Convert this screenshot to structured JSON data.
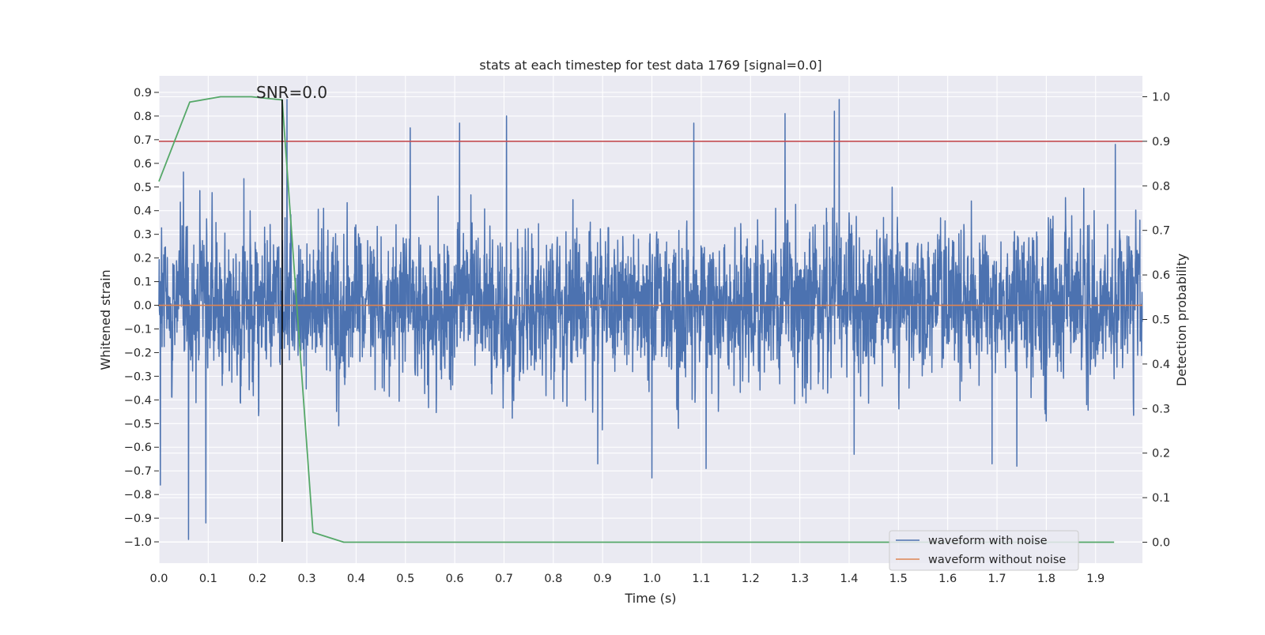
{
  "chart_data": {
    "type": "line",
    "title": "stats at each timestep for test data 1769 [signal=0.0]",
    "xlabel": "Time (s)",
    "ylabel": "Whitened strain",
    "y2label": "Detection probability",
    "xlim": [
      0.0,
      1.995
    ],
    "ylim": [
      -1.09,
      0.97
    ],
    "y2lim": [
      -0.047,
      1.047
    ],
    "x_ticks": [
      "0.0",
      "0.1",
      "0.2",
      "0.3",
      "0.4",
      "0.5",
      "0.6",
      "0.7",
      "0.8",
      "0.9",
      "1.0",
      "1.1",
      "1.2",
      "1.3",
      "1.4",
      "1.5",
      "1.6",
      "1.7",
      "1.8",
      "1.9"
    ],
    "y_ticks": [
      "0.9",
      "0.8",
      "0.7",
      "0.6",
      "0.5",
      "0.4",
      "0.3",
      "0.2",
      "0.1",
      "0.0",
      "-0.1",
      "-0.2",
      "-0.3",
      "-0.4",
      "-0.5",
      "-0.6",
      "-0.7",
      "-0.8",
      "-0.9",
      "-1.0"
    ],
    "y2_ticks": [
      "1.0",
      "0.9",
      "0.8",
      "0.7",
      "0.6",
      "0.5",
      "0.4",
      "0.3",
      "0.2",
      "0.1",
      "0.0"
    ],
    "grid": true,
    "legend_position": "lower-right",
    "annotation": {
      "text": "SNR=0.0",
      "x": 0.2
    },
    "series": [
      {
        "name": "waveform with noise",
        "color": "#4c72b0",
        "axis": "left",
        "sample_rate": 2048,
        "noise_std": 0.22,
        "peaks": [
          [
            0.003,
            -0.76
          ],
          [
            0.06,
            -0.99
          ],
          [
            0.095,
            -0.92
          ],
          [
            0.26,
            0.87
          ],
          [
            0.51,
            0.75
          ],
          [
            0.61,
            0.77
          ],
          [
            0.705,
            0.8
          ],
          [
            0.89,
            -0.67
          ],
          [
            1.0,
            -0.73
          ],
          [
            1.085,
            0.77
          ],
          [
            1.11,
            -0.69
          ],
          [
            1.27,
            0.81
          ],
          [
            1.37,
            0.82
          ],
          [
            1.38,
            0.87
          ],
          [
            1.41,
            -0.63
          ],
          [
            1.69,
            -0.67
          ],
          [
            1.74,
            -0.68
          ],
          [
            1.94,
            0.68
          ]
        ]
      },
      {
        "name": "waveform without noise",
        "color": "#dd8452",
        "axis": "left",
        "x": [
          0.0,
          1.995
        ],
        "y": [
          0.0,
          0.0
        ]
      },
      {
        "name": "",
        "color": "#55a868",
        "axis": "right",
        "x": [
          0.0,
          0.0625,
          0.125,
          0.1875,
          0.25,
          0.3125,
          0.375,
          0.4375,
          0.5,
          0.5625,
          0.625,
          0.6875,
          0.75,
          0.8125,
          0.875,
          0.9375,
          1.0,
          1.0625,
          1.125,
          1.1875,
          1.25,
          1.3125,
          1.375,
          1.4375,
          1.5,
          1.5625,
          1.625,
          1.6875,
          1.75,
          1.8125,
          1.875,
          1.9375
        ],
        "y": [
          0.81,
          0.988,
          1.0,
          1.0,
          0.993,
          0.022,
          0.0,
          0.0,
          0.0,
          0.0,
          0.0,
          0.0,
          0.0,
          0.0,
          0.0,
          0.0,
          0.0,
          0.0,
          0.0,
          0.0,
          0.0,
          0.0,
          0.0,
          0.0,
          0.0,
          0.0,
          0.0,
          0.0,
          0.0,
          0.0,
          0.0,
          0.0
        ]
      }
    ],
    "threshold_line": {
      "axis": "right",
      "value": 0.9,
      "color": "#c44e52"
    },
    "marker_line": {
      "x": 0.25,
      "y_from": -1.0,
      "y_to": 0.87,
      "color": "#000000"
    }
  }
}
